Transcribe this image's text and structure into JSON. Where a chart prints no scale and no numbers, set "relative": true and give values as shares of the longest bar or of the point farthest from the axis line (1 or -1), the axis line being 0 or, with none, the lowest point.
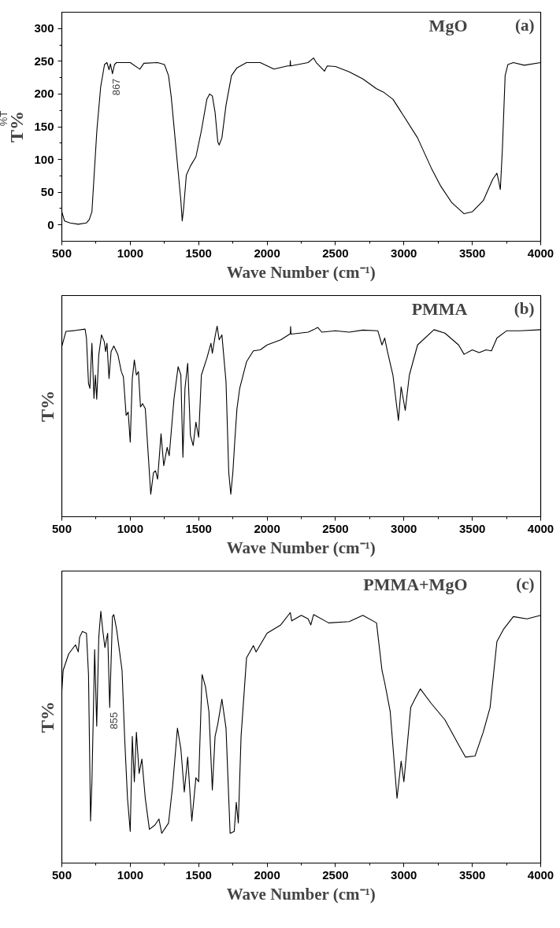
{
  "chart_data": [
    {
      "type": "line",
      "title": "MgO",
      "annotations": [
        "(a)",
        {
          "text": "867",
          "x": 867,
          "y": 231
        }
      ],
      "xlabel": "Wave Number (cm⁻¹)",
      "ylabel": "T%$^{%T}$",
      "color": "#000000",
      "xlim": [
        500,
        4000
      ],
      "xticks": [
        500,
        1000,
        1500,
        2000,
        2500,
        3000,
        3500,
        4000
      ],
      "ylim": [
        -25,
        325
      ],
      "yticks": [
        0,
        50,
        100,
        150,
        200,
        250,
        300
      ],
      "x": [
        500,
        520,
        560,
        620,
        680,
        700,
        720,
        728,
        756,
        784,
        812,
        830,
        845,
        855,
        870,
        885,
        900,
        1000,
        1070,
        1100,
        1200,
        1250,
        1280,
        1300,
        1330,
        1350,
        1370,
        1380,
        1390,
        1410,
        1440,
        1480,
        1520,
        1560,
        1580,
        1600,
        1620,
        1640,
        1650,
        1670,
        1700,
        1740,
        1780,
        1850,
        1950,
        2050,
        2150,
        2168,
        2170,
        2172,
        2300,
        2340,
        2360,
        2420,
        2440,
        2500,
        2600,
        2700,
        2800,
        2850,
        2920,
        3000,
        3100,
        3200,
        3270,
        3350,
        3440,
        3500,
        3580,
        3650,
        3680,
        3695,
        3705,
        3720,
        3740,
        3760,
        3800,
        3880,
        4000
      ],
      "values": [
        20,
        6,
        3,
        1,
        3,
        8,
        20,
        48,
        144,
        211,
        245,
        248,
        237,
        246,
        231,
        245,
        248,
        248,
        238,
        247,
        248,
        245,
        228,
        195,
        127,
        82,
        37,
        6,
        25,
        76,
        90,
        104,
        144,
        192,
        200,
        197,
        172,
        127,
        122,
        133,
        183,
        228,
        240,
        248,
        248,
        238,
        243,
        243,
        251,
        243,
        248,
        255,
        248,
        235,
        243,
        242,
        234,
        223,
        208,
        203,
        192,
        166,
        133,
        87,
        59,
        34,
        17,
        20,
        37,
        70,
        79,
        65,
        54,
        116,
        228,
        245,
        248,
        244,
        248
      ]
    },
    {
      "type": "line",
      "title": "PMMA",
      "annotations": [
        "(b)"
      ],
      "xlabel": "Wave Number (cm⁻¹)",
      "ylabel": "T%",
      "color": "#000000",
      "relative": true,
      "tick_labels": "x",
      "xlim": [
        500,
        4000
      ],
      "xticks": [
        500,
        1000,
        1500,
        2000,
        2500,
        3000,
        3500,
        4000
      ],
      "x": [
        500,
        510,
        530,
        600,
        670,
        680,
        695,
        705,
        720,
        735,
        745,
        755,
        770,
        790,
        810,
        820,
        830,
        845,
        860,
        880,
        910,
        935,
        950,
        970,
        985,
        1000,
        1015,
        1030,
        1045,
        1060,
        1075,
        1090,
        1110,
        1150,
        1170,
        1185,
        1200,
        1215,
        1225,
        1245,
        1270,
        1285,
        1320,
        1350,
        1370,
        1385,
        1400,
        1420,
        1440,
        1460,
        1480,
        1500,
        1520,
        1560,
        1590,
        1600,
        1620,
        1635,
        1650,
        1670,
        1700,
        1720,
        1735,
        1750,
        1765,
        1780,
        1800,
        1850,
        1900,
        1950,
        2000,
        2100,
        2170,
        2172,
        2175,
        2300,
        2340,
        2370,
        2400,
        2500,
        2600,
        2700,
        2810,
        2840,
        2860,
        2880,
        2920,
        2960,
        2980,
        3010,
        3040,
        3100,
        3220,
        3300,
        3400,
        3440,
        3500,
        3550,
        3600,
        3640,
        3680,
        3750,
        3850,
        4000
      ],
      "values": [
        0.893,
        0.919,
        0.972,
        0.977,
        0.984,
        0.937,
        0.699,
        0.673,
        0.91,
        0.62,
        0.743,
        0.616,
        0.849,
        0.954,
        0.919,
        0.866,
        0.91,
        0.725,
        0.866,
        0.896,
        0.849,
        0.761,
        0.734,
        0.532,
        0.549,
        0.391,
        0.725,
        0.822,
        0.743,
        0.761,
        0.576,
        0.593,
        0.567,
        0.118,
        0.232,
        0.241,
        0.197,
        0.338,
        0.435,
        0.268,
        0.364,
        0.32,
        0.62,
        0.787,
        0.743,
        0.312,
        0.673,
        0.805,
        0.426,
        0.373,
        0.496,
        0.417,
        0.743,
        0.831,
        0.91,
        0.857,
        0.945,
        1.0,
        0.928,
        0.954,
        0.708,
        0.232,
        0.118,
        0.232,
        0.408,
        0.567,
        0.673,
        0.813,
        0.87,
        0.875,
        0.901,
        0.928,
        0.96,
        0.998,
        0.958,
        0.968,
        0.981,
        0.993,
        0.968,
        0.975,
        0.968,
        0.979,
        0.975,
        0.901,
        0.937,
        0.866,
        0.743,
        0.505,
        0.681,
        0.558,
        0.743,
        0.901,
        0.981,
        0.963,
        0.901,
        0.852,
        0.875,
        0.861,
        0.875,
        0.87,
        0.937,
        0.975,
        0.975,
        0.981
      ]
    },
    {
      "type": "line",
      "title": "PMMA+MgO",
      "annotations": [
        "(c)",
        {
          "text": "855",
          "x": 850,
          "y": 0.618
        }
      ],
      "xlabel": "Wave Number (cm⁻¹)",
      "ylabel": "T%",
      "color": "#000000",
      "relative": true,
      "tick_labels": "x",
      "xlim": [
        500,
        4000
      ],
      "xticks": [
        500,
        1000,
        1500,
        2000,
        2500,
        3000,
        3500,
        4000
      ],
      "x": [
        500,
        510,
        550,
        600,
        620,
        630,
        650,
        680,
        695,
        710,
        720,
        740,
        755,
        770,
        785,
        800,
        815,
        835,
        850,
        870,
        880,
        900,
        920,
        940,
        960,
        980,
        1000,
        1015,
        1030,
        1045,
        1065,
        1085,
        1110,
        1140,
        1180,
        1210,
        1230,
        1280,
        1310,
        1345,
        1370,
        1395,
        1420,
        1450,
        1480,
        1500,
        1525,
        1550,
        1575,
        1600,
        1620,
        1640,
        1670,
        1700,
        1730,
        1760,
        1775,
        1790,
        1810,
        1850,
        1900,
        1920,
        2000,
        2100,
        2170,
        2180,
        2250,
        2300,
        2320,
        2340,
        2450,
        2600,
        2700,
        2800,
        2840,
        2860,
        2900,
        2950,
        2980,
        3000,
        3050,
        3080,
        3120,
        3200,
        3300,
        3400,
        3450,
        3520,
        3580,
        3630,
        3680,
        3730,
        3800,
        3900,
        4000
      ],
      "values": [
        0.684,
        0.766,
        0.831,
        0.867,
        0.839,
        0.897,
        0.92,
        0.913,
        0.749,
        0.167,
        0.323,
        0.848,
        0.544,
        0.897,
        1.0,
        0.921,
        0.856,
        0.913,
        0.618,
        0.979,
        0.987,
        0.93,
        0.848,
        0.766,
        0.487,
        0.257,
        0.126,
        0.503,
        0.323,
        0.52,
        0.356,
        0.413,
        0.257,
        0.134,
        0.151,
        0.175,
        0.118,
        0.159,
        0.307,
        0.536,
        0.454,
        0.282,
        0.421,
        0.167,
        0.339,
        0.323,
        0.749,
        0.7,
        0.602,
        0.29,
        0.503,
        0.552,
        0.651,
        0.536,
        0.118,
        0.126,
        0.241,
        0.159,
        0.503,
        0.815,
        0.864,
        0.839,
        0.913,
        0.946,
        0.995,
        0.962,
        0.984,
        0.97,
        0.946,
        0.987,
        0.954,
        0.959,
        0.984,
        0.954,
        0.766,
        0.716,
        0.602,
        0.257,
        0.405,
        0.323,
        0.618,
        0.651,
        0.692,
        0.634,
        0.569,
        0.47,
        0.421,
        0.425,
        0.52,
        0.618,
        0.88,
        0.93,
        0.979,
        0.97,
        0.984
      ]
    }
  ]
}
